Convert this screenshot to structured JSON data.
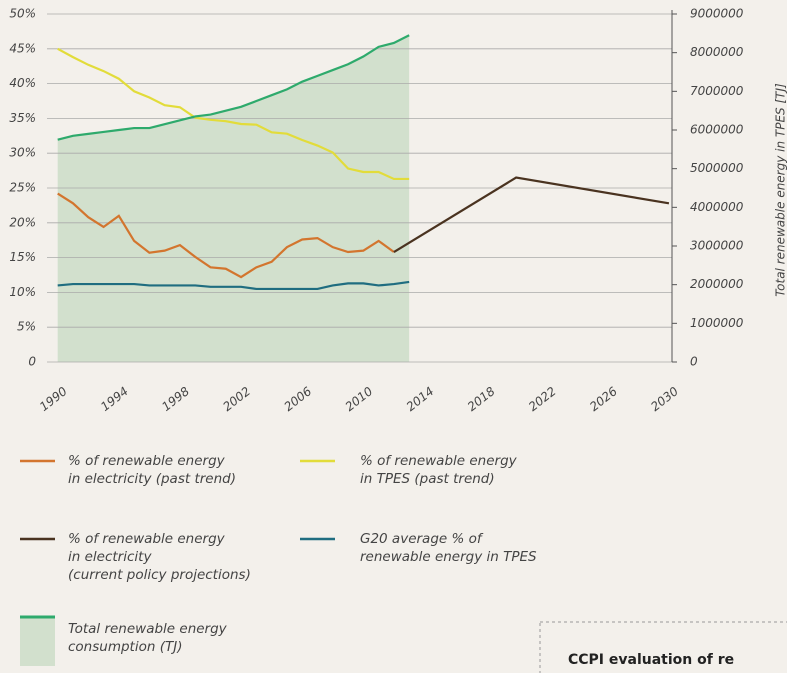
{
  "chart_data": {
    "type": "line",
    "xlim": [
      1989.3,
      2030.2
    ],
    "xticks": [
      1990,
      1994,
      1998,
      2002,
      2006,
      2010,
      2014,
      2018,
      2022,
      2026,
      2030
    ],
    "ylim": [
      0,
      50
    ],
    "yticks": [
      {
        "value": 0,
        "label": "0"
      },
      {
        "value": 5,
        "label": "5%"
      },
      {
        "value": 10,
        "label": "10%"
      },
      {
        "value": 15,
        "label": "15%"
      },
      {
        "value": 20,
        "label": "20%"
      },
      {
        "value": 25,
        "label": "25%"
      },
      {
        "value": 30,
        "label": "30%"
      },
      {
        "value": 35,
        "label": "35%"
      },
      {
        "value": 40,
        "label": "40%"
      },
      {
        "value": 45,
        "label": "45%"
      },
      {
        "value": 50,
        "label": "50%"
      }
    ],
    "y2lim": [
      0,
      9000000
    ],
    "y2ticks": [
      0,
      1000000,
      2000000,
      3000000,
      4000000,
      5000000,
      6000000,
      7000000,
      8000000,
      9000000
    ],
    "y2label": "Total renewable energy in TPES [TJ]",
    "grid": true,
    "series": [
      {
        "name": "% of renewable energy\nin electricity (past trend)",
        "color": "#d3752e",
        "x": [
          1990,
          1991,
          1992,
          1993,
          1994,
          1995,
          1996,
          1997,
          1998,
          1999,
          2000,
          2001,
          2002,
          2003,
          2004,
          2005,
          2006,
          2007,
          2008,
          2009,
          2010,
          2011,
          2012
        ],
        "values": [
          24.2,
          22.8,
          20.8,
          19.4,
          21,
          17.4,
          15.7,
          16,
          16.8,
          15.1,
          13.6,
          13.4,
          12.2,
          13.6,
          14.4,
          16.5,
          17.6,
          17.8,
          16.5,
          15.8,
          16,
          17.4,
          15.8
        ]
      },
      {
        "name": "% of renewable energy\nin TPES (past trend)",
        "color": "#e2dc3a",
        "x": [
          1990,
          1991,
          1992,
          1993,
          1994,
          1995,
          1996,
          1997,
          1998,
          1999,
          2000,
          2001,
          2002,
          2003,
          2004,
          2005,
          2006,
          2007,
          2008,
          2009,
          2010,
          2011,
          2012,
          2013
        ],
        "values": [
          45,
          43.8,
          42.7,
          41.8,
          40.7,
          38.9,
          38,
          36.9,
          36.6,
          35.1,
          34.8,
          34.6,
          34.2,
          34.1,
          33,
          32.8,
          31.9,
          31.1,
          30.1,
          27.8,
          27.3,
          27.3,
          26.3,
          26.3
        ]
      },
      {
        "name": "% of renewable energy\nin electricity\n(current policy projections)",
        "color": "#4a3320",
        "x": [
          2012,
          2020,
          2030
        ],
        "values": [
          15.8,
          26.5,
          22.8
        ]
      },
      {
        "name": "G20 average % of\nrenewable energy in TPES",
        "color": "#1f6d80",
        "x": [
          1990,
          1991,
          1992,
          1993,
          1994,
          1995,
          1996,
          1997,
          1998,
          1999,
          2000,
          2001,
          2002,
          2003,
          2004,
          2005,
          2006,
          2007,
          2008,
          2009,
          2010,
          2011,
          2012,
          2013
        ],
        "values": [
          11,
          11.2,
          11.2,
          11.2,
          11.2,
          11.2,
          11,
          11,
          11,
          11,
          10.8,
          10.8,
          10.8,
          10.5,
          10.5,
          10.5,
          10.5,
          10.5,
          11,
          11.3,
          11.3,
          11,
          11.2,
          11.5
        ]
      },
      {
        "name": "Total renewable energy\nconsumption (TJ)",
        "color": "#2eaa6c",
        "fill_color": "#d2e0cd",
        "axis": "y2",
        "x": [
          1990,
          1991,
          1992,
          1993,
          1994,
          1995,
          1996,
          1997,
          1998,
          1999,
          2000,
          2001,
          2002,
          2003,
          2004,
          2005,
          2006,
          2007,
          2008,
          2009,
          2010,
          2011,
          2012,
          2013
        ],
        "values": [
          5750000,
          5850000,
          5900000,
          5950000,
          6000000,
          6050000,
          6050000,
          6150000,
          6250000,
          6350000,
          6400000,
          6500000,
          6600000,
          6750000,
          6900000,
          7050000,
          7250000,
          7400000,
          7550000,
          7700000,
          7900000,
          8150000,
          8250000,
          8450000
        ]
      }
    ],
    "annotation": "CCPI evaluation of re"
  }
}
